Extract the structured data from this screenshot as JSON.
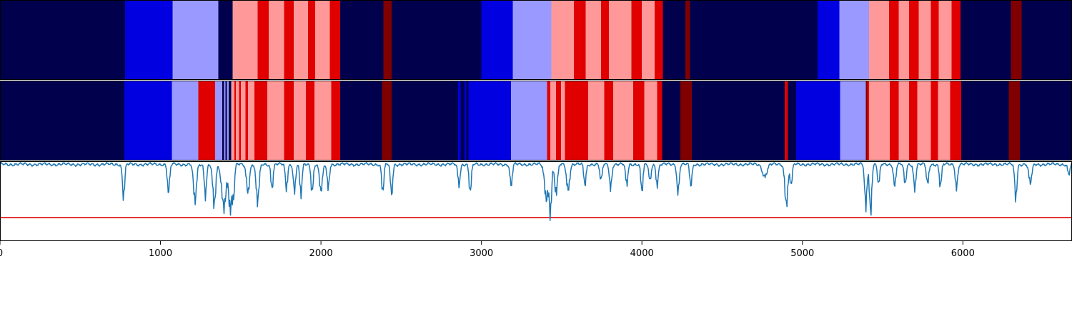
{
  "chart_data": {
    "type": "heatmap",
    "title": "",
    "xlabel": "",
    "ylabel": "",
    "xlim": [
      0,
      6680
    ],
    "grid": false,
    "legend": "none",
    "colors": {
      "0": "#00004c",
      "1": "#0000e0",
      "2": "#9999ff",
      "3": "#ff9999",
      "4": "#e00000",
      "5": "#800000",
      "line": "#1f77b4",
      "threshold": "#e00000"
    },
    "rows": [
      {
        "segments": [
          [
            0,
            780,
            0
          ],
          [
            780,
            1075,
            1
          ],
          [
            1075,
            1360,
            2
          ],
          [
            1360,
            1450,
            0
          ],
          [
            1450,
            1605,
            3
          ],
          [
            1605,
            1675,
            4
          ],
          [
            1675,
            1770,
            3
          ],
          [
            1770,
            1830,
            4
          ],
          [
            1830,
            1920,
            3
          ],
          [
            1920,
            1965,
            4
          ],
          [
            1965,
            2055,
            3
          ],
          [
            2055,
            2120,
            4
          ],
          [
            2120,
            2390,
            0
          ],
          [
            2390,
            2440,
            5
          ],
          [
            2440,
            3000,
            0
          ],
          [
            3000,
            3195,
            1
          ],
          [
            3195,
            3435,
            2
          ],
          [
            3435,
            3575,
            3
          ],
          [
            3575,
            3650,
            4
          ],
          [
            3650,
            3745,
            3
          ],
          [
            3745,
            3795,
            4
          ],
          [
            3795,
            3935,
            3
          ],
          [
            3935,
            4000,
            4
          ],
          [
            4000,
            4080,
            3
          ],
          [
            4080,
            4130,
            4
          ],
          [
            4130,
            4270,
            0
          ],
          [
            4270,
            4300,
            5
          ],
          [
            4300,
            5095,
            0
          ],
          [
            5095,
            5230,
            1
          ],
          [
            5230,
            5415,
            2
          ],
          [
            5415,
            5540,
            3
          ],
          [
            5540,
            5600,
            4
          ],
          [
            5600,
            5665,
            3
          ],
          [
            5665,
            5725,
            4
          ],
          [
            5725,
            5800,
            3
          ],
          [
            5800,
            5850,
            4
          ],
          [
            5850,
            5930,
            3
          ],
          [
            5930,
            5985,
            4
          ],
          [
            5985,
            6300,
            0
          ],
          [
            6300,
            6365,
            5
          ],
          [
            6365,
            6680,
            0
          ]
        ]
      },
      {
        "segments": [
          [
            0,
            775,
            0
          ],
          [
            775,
            1070,
            1
          ],
          [
            1070,
            1235,
            2
          ],
          [
            1235,
            1340,
            4
          ],
          [
            1340,
            1385,
            2
          ],
          [
            1385,
            1395,
            0
          ],
          [
            1395,
            1405,
            2
          ],
          [
            1405,
            1415,
            0
          ],
          [
            1415,
            1425,
            2
          ],
          [
            1425,
            1440,
            0
          ],
          [
            1440,
            1460,
            3
          ],
          [
            1460,
            1470,
            4
          ],
          [
            1470,
            1490,
            3
          ],
          [
            1490,
            1500,
            4
          ],
          [
            1500,
            1530,
            3
          ],
          [
            1530,
            1545,
            4
          ],
          [
            1545,
            1585,
            3
          ],
          [
            1585,
            1665,
            4
          ],
          [
            1665,
            1770,
            3
          ],
          [
            1770,
            1830,
            4
          ],
          [
            1830,
            1905,
            3
          ],
          [
            1905,
            1960,
            4
          ],
          [
            1960,
            2065,
            3
          ],
          [
            2065,
            2120,
            4
          ],
          [
            2120,
            2380,
            0
          ],
          [
            2380,
            2440,
            5
          ],
          [
            2440,
            2855,
            0
          ],
          [
            2855,
            2870,
            1
          ],
          [
            2870,
            2895,
            0
          ],
          [
            2895,
            2905,
            1
          ],
          [
            2905,
            2920,
            0
          ],
          [
            2920,
            3185,
            1
          ],
          [
            3185,
            3410,
            2
          ],
          [
            3410,
            3430,
            4
          ],
          [
            3430,
            3465,
            3
          ],
          [
            3465,
            3495,
            4
          ],
          [
            3495,
            3520,
            3
          ],
          [
            3520,
            3665,
            4
          ],
          [
            3665,
            3765,
            3
          ],
          [
            3765,
            3820,
            4
          ],
          [
            3820,
            3945,
            3
          ],
          [
            3945,
            4015,
            4
          ],
          [
            4015,
            4095,
            3
          ],
          [
            4095,
            4125,
            4
          ],
          [
            4125,
            4240,
            0
          ],
          [
            4240,
            4310,
            5
          ],
          [
            4310,
            4890,
            0
          ],
          [
            4890,
            4910,
            4
          ],
          [
            4910,
            4960,
            0
          ],
          [
            4960,
            5235,
            1
          ],
          [
            5235,
            5395,
            2
          ],
          [
            5395,
            5405,
            5
          ],
          [
            5405,
            5415,
            4
          ],
          [
            5415,
            5545,
            3
          ],
          [
            5545,
            5600,
            4
          ],
          [
            5600,
            5665,
            3
          ],
          [
            5665,
            5715,
            4
          ],
          [
            5715,
            5800,
            3
          ],
          [
            5800,
            5845,
            4
          ],
          [
            5845,
            5920,
            3
          ],
          [
            5920,
            5990,
            4
          ],
          [
            5990,
            6285,
            0
          ],
          [
            6285,
            6355,
            5
          ],
          [
            6355,
            6680,
            0
          ]
        ]
      }
    ],
    "line": {
      "baseline": 0,
      "ylim": [
        -1.0,
        0.02
      ],
      "threshold": -0.7,
      "dips": [
        [
          770,
          -0.48,
          30
        ],
        [
          1050,
          -0.42,
          30
        ],
        [
          1215,
          -0.55,
          40
        ],
        [
          1280,
          -0.45,
          30
        ],
        [
          1335,
          -0.6,
          40
        ],
        [
          1395,
          -0.62,
          60
        ],
        [
          1435,
          -0.65,
          40
        ],
        [
          1455,
          -0.45,
          30
        ],
        [
          1545,
          -0.4,
          40
        ],
        [
          1605,
          -0.55,
          40
        ],
        [
          1695,
          -0.35,
          30
        ],
        [
          1785,
          -0.35,
          30
        ],
        [
          1835,
          -0.4,
          30
        ],
        [
          1875,
          -0.45,
          30
        ],
        [
          1945,
          -0.4,
          30
        ],
        [
          2000,
          -0.4,
          40
        ],
        [
          2045,
          -0.35,
          30
        ],
        [
          2385,
          -0.4,
          30
        ],
        [
          2440,
          -0.45,
          30
        ],
        [
          2860,
          -0.3,
          30
        ],
        [
          2930,
          -0.42,
          30
        ],
        [
          3185,
          -0.32,
          30
        ],
        [
          3405,
          -0.5,
          50
        ],
        [
          3430,
          -0.68,
          30
        ],
        [
          3465,
          -0.42,
          40
        ],
        [
          3540,
          -0.38,
          40
        ],
        [
          3645,
          -0.3,
          30
        ],
        [
          3745,
          -0.25,
          30
        ],
        [
          3805,
          -0.35,
          30
        ],
        [
          3905,
          -0.3,
          30
        ],
        [
          4000,
          -0.4,
          30
        ],
        [
          4050,
          -0.25,
          30
        ],
        [
          4095,
          -0.3,
          30
        ],
        [
          4225,
          -0.42,
          30
        ],
        [
          4305,
          -0.32,
          30
        ],
        [
          4765,
          -0.18,
          60
        ],
        [
          4900,
          -0.58,
          40
        ],
        [
          4930,
          -0.3,
          30
        ],
        [
          5395,
          -0.62,
          30
        ],
        [
          5425,
          -0.72,
          30
        ],
        [
          5475,
          -0.3,
          30
        ],
        [
          5575,
          -0.32,
          30
        ],
        [
          5640,
          -0.3,
          30
        ],
        [
          5700,
          -0.35,
          30
        ],
        [
          5780,
          -0.3,
          30
        ],
        [
          5860,
          -0.32,
          30
        ],
        [
          5960,
          -0.35,
          30
        ],
        [
          6330,
          -0.5,
          30
        ],
        [
          6420,
          -0.28,
          40
        ],
        [
          6660,
          -0.15,
          30
        ]
      ]
    },
    "xticks": [
      0,
      1000,
      2000,
      3000,
      4000,
      5000,
      6000
    ],
    "xtick_labels": [
      "0",
      "1000",
      "2000",
      "3000",
      "4000",
      "5000",
      "6000"
    ]
  }
}
